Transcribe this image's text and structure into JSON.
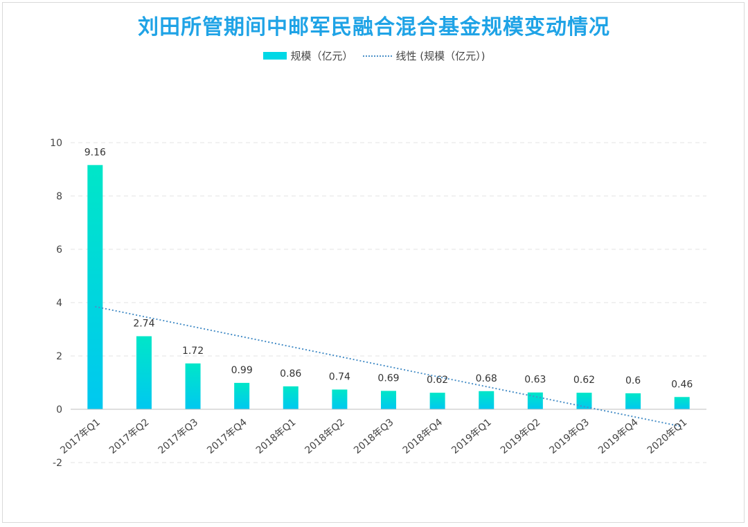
{
  "chart_data": {
    "type": "bar",
    "title": "刘田所管期间中邮军民融合混合基金规模变动情况",
    "categories": [
      "2017年Q1",
      "2017年Q2",
      "2017年Q3",
      "2017年Q4",
      "2018年Q1",
      "2018年Q2",
      "2018年Q3",
      "2018年Q4",
      "2019年Q1",
      "2019年Q2",
      "2019年Q3",
      "2019年Q4",
      "2020年Q1"
    ],
    "series": [
      {
        "name": "规模（亿元）",
        "values": [
          9.16,
          2.74,
          1.72,
          0.99,
          0.86,
          0.74,
          0.69,
          0.62,
          0.68,
          0.63,
          0.62,
          0.6,
          0.46
        ],
        "data_labels": [
          "9.16",
          "2.74",
          "1.72",
          "0.99",
          "0.86",
          "0.74",
          "0.69",
          "0.62",
          "0.68",
          "0.63",
          "0.62",
          "0.6",
          "0.46"
        ]
      }
    ],
    "trendline": {
      "name": "线性 (规模（亿元）)",
      "type": "linear",
      "start": 3.85,
      "end": -0.65,
      "style": "dotted"
    },
    "ylim": [
      -2,
      10
    ],
    "yticks": [
      "-2",
      "0",
      "2",
      "4",
      "6",
      "8",
      "10"
    ],
    "grid": true,
    "legend_position": "top",
    "colors": {
      "bar_top": "#00e6c8",
      "bar_bottom": "#00c8f0",
      "trend": "#4a90c8",
      "title": "#1fa3e6",
      "grid": "#e3e3e3"
    }
  }
}
